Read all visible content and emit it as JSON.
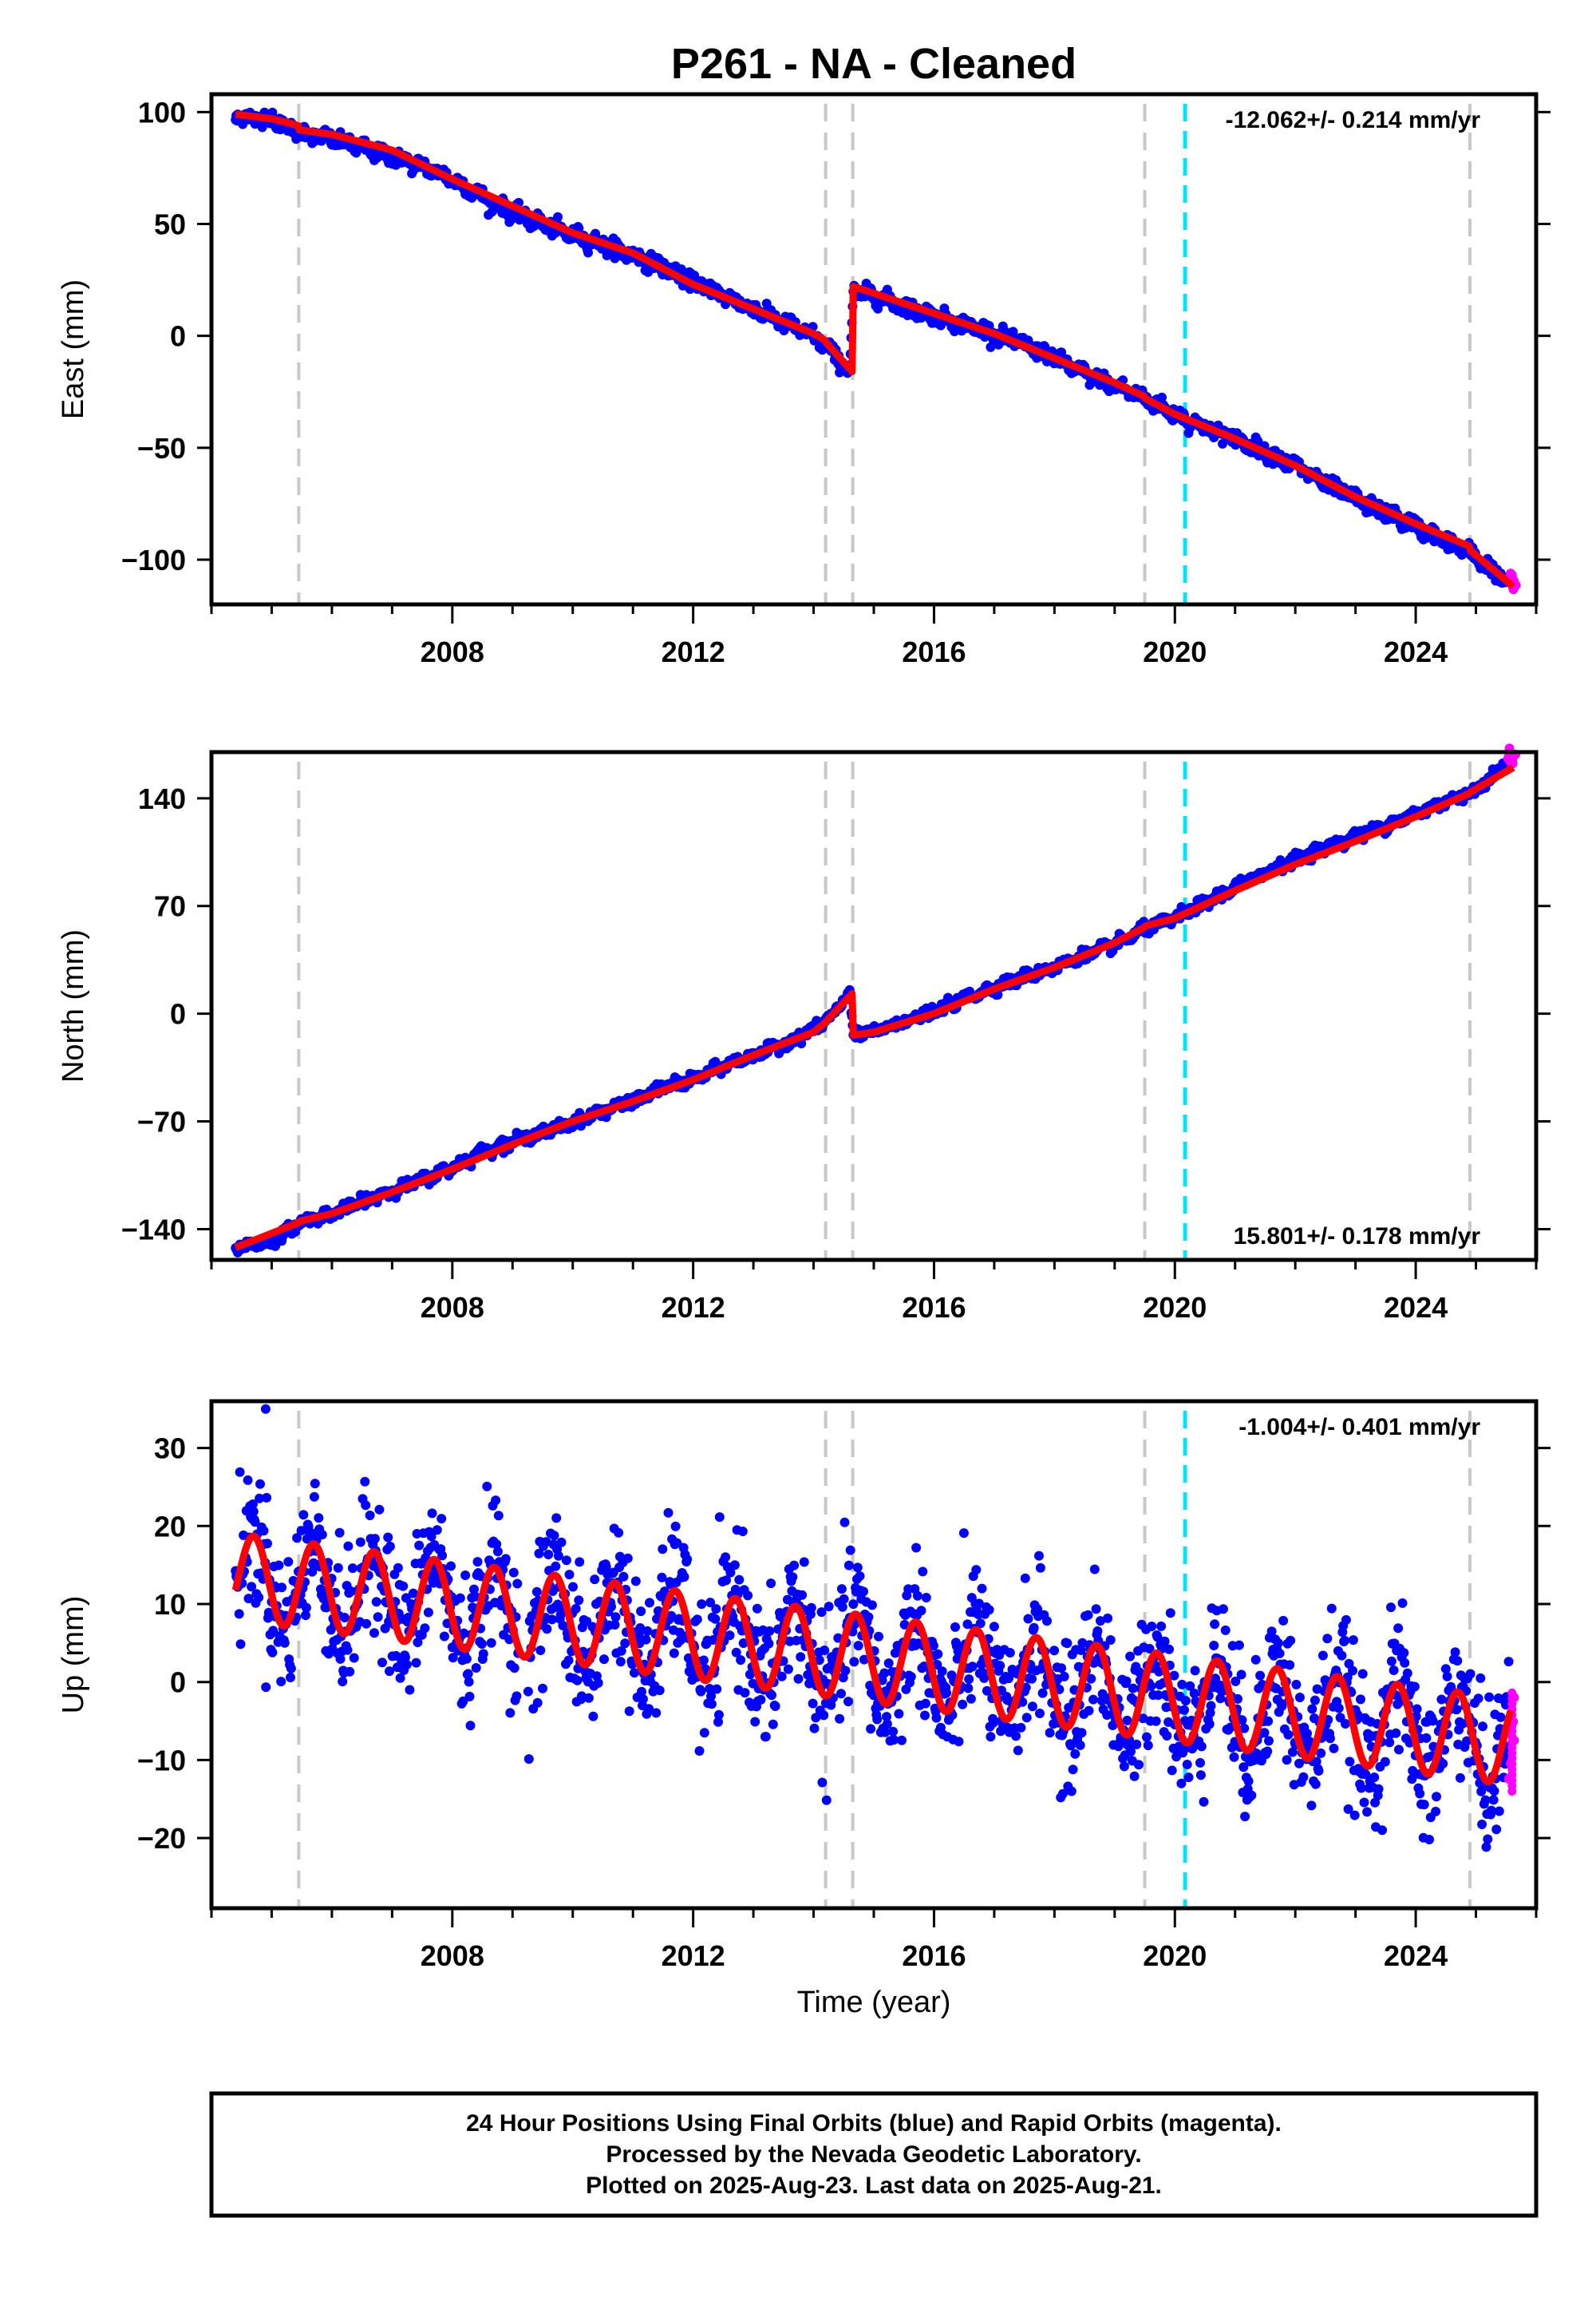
{
  "title": "P261  - NA - Cleaned",
  "colors": {
    "final_points": "#0000ff",
    "rapid_points": "#ff00ff",
    "model_line": "#ff0000",
    "equipment_change": "#c8c8c8",
    "earthquake_marker": "#00e5ff"
  },
  "chart_data": [
    {
      "type": "scatter",
      "ylabel": "East (mm)",
      "ylim": [
        -120,
        108
      ],
      "yticks": [
        100,
        50,
        0,
        -50,
        -100
      ],
      "ytick_labels": [
        "100",
        "50",
        "0",
        "−50",
        "−100"
      ],
      "xlim": [
        2004.0,
        2026.0
      ],
      "xticks": [
        2008,
        2012,
        2016,
        2020,
        2024
      ],
      "xtick_labels": [
        "2008",
        "2012",
        "2016",
        "2020",
        "2024"
      ],
      "rate": "-12.062+/- 0.214 mm/yr",
      "rate_position": "top-right",
      "offset_lines": [
        2005.45,
        2014.2,
        2014.65,
        2019.5,
        2024.9
      ],
      "earthquake_lines": [
        2020.17
      ],
      "final_series": {
        "x": [
          2004.4,
          2005.0,
          2005.4,
          2005.5,
          2006.0,
          2006.5,
          2007.0,
          2007.5,
          2008.0,
          2008.5,
          2009.0,
          2009.5,
          2010.0,
          2010.5,
          2011.0,
          2011.5,
          2012.0,
          2012.5,
          2013.0,
          2013.5,
          2014.0,
          2014.2,
          2014.6,
          2014.66,
          2015.0,
          2015.5,
          2016.0,
          2016.5,
          2017.0,
          2017.5,
          2018.0,
          2018.5,
          2019.0,
          2019.5,
          2020.0,
          2020.5,
          2021.0,
          2021.5,
          2022.0,
          2022.5,
          2023.0,
          2023.5,
          2024.0,
          2024.5,
          2024.9,
          2025.2,
          2025.5
        ],
        "y": [
          98,
          97,
          92,
          91,
          88,
          84,
          80,
          76,
          70,
          62,
          55,
          50,
          45,
          41,
          36,
          31,
          24,
          18,
          12,
          6,
          0,
          -4,
          -16,
          20,
          18,
          13,
          9,
          5,
          1,
          -4,
          -10,
          -17,
          -22,
          -28,
          -35,
          -41,
          -46,
          -52,
          -58,
          -66,
          -73,
          -79,
          -85,
          -92,
          -97,
          -103,
          -110
        ]
      },
      "rapid_series": {
        "x": [
          2025.55,
          2025.6,
          2025.62
        ],
        "y": [
          -108,
          -110,
          -111
        ]
      },
      "model_line": {
        "x": [
          2004.4,
          2005.0,
          2005.44,
          2005.46,
          2006.0,
          2007.0,
          2008.0,
          2009.0,
          2010.0,
          2011.0,
          2012.0,
          2013.0,
          2014.0,
          2014.19,
          2014.21,
          2014.64,
          2014.66,
          2015.0,
          2016.0,
          2017.0,
          2018.0,
          2019.0,
          2019.49,
          2019.51,
          2020.0,
          2021.0,
          2022.0,
          2023.0,
          2024.0,
          2024.89,
          2024.91,
          2025.62
        ],
        "y": [
          99,
          97,
          94,
          92,
          90,
          83,
          70,
          58,
          46,
          37,
          23,
          12,
          1,
          -2,
          -3,
          -16,
          22,
          19,
          10,
          1,
          -10,
          -21,
          -27,
          -28,
          -35,
          -46,
          -58,
          -72,
          -84,
          -94,
          -96,
          -112
        ]
      }
    },
    {
      "type": "scatter",
      "ylabel": "North (mm)",
      "ylim": [
        -160,
        170
      ],
      "yticks": [
        140,
        70,
        0,
        -70,
        -140
      ],
      "ytick_labels": [
        "140",
        "70",
        "0",
        "−70",
        "−140"
      ],
      "xlim": [
        2004.0,
        2026.0
      ],
      "xticks": [
        2008,
        2012,
        2016,
        2020,
        2024
      ],
      "xtick_labels": [
        "2008",
        "2012",
        "2016",
        "2020",
        "2024"
      ],
      "rate": "15.801+/- 0.178 mm/yr",
      "rate_position": "bottom-right",
      "offset_lines": [
        2005.45,
        2014.2,
        2014.65,
        2019.5,
        2024.9
      ],
      "earthquake_lines": [
        2020.17
      ],
      "final_series": {
        "x": [
          2004.4,
          2005.0,
          2005.5,
          2006.0,
          2006.5,
          2007.0,
          2007.5,
          2008.0,
          2008.5,
          2009.0,
          2009.5,
          2010.0,
          2010.5,
          2011.0,
          2011.5,
          2012.0,
          2012.5,
          2013.0,
          2013.5,
          2014.0,
          2014.3,
          2014.6,
          2014.66,
          2015.0,
          2015.5,
          2016.0,
          2016.5,
          2017.0,
          2017.5,
          2018.0,
          2018.5,
          2019.0,
          2019.5,
          2020.0,
          2020.5,
          2021.0,
          2021.5,
          2022.0,
          2022.5,
          2023.0,
          2023.5,
          2024.0,
          2024.5,
          2024.9,
          2025.2,
          2025.5
        ],
        "y": [
          -152,
          -148,
          -135,
          -130,
          -122,
          -115,
          -108,
          -100,
          -90,
          -83,
          -77,
          -71,
          -63,
          -57,
          -48,
          -43,
          -34,
          -27,
          -20,
          -10,
          -2,
          14,
          -14,
          -12,
          -5,
          1,
          10,
          17,
          24,
          30,
          38,
          45,
          55,
          62,
          72,
          82,
          92,
          100,
          108,
          115,
          122,
          130,
          138,
          143,
          152,
          163
        ]
      },
      "rapid_series": {
        "x": [
          2025.55,
          2025.6,
          2025.62
        ],
        "y": [
          166,
          168,
          165
        ]
      },
      "model_line": {
        "x": [
          2004.4,
          2005.44,
          2005.46,
          2006.0,
          2007.0,
          2008.0,
          2009.0,
          2010.0,
          2011.0,
          2012.0,
          2013.0,
          2014.0,
          2014.19,
          2014.21,
          2014.64,
          2014.66,
          2015.0,
          2016.0,
          2017.0,
          2018.0,
          2019.0,
          2019.49,
          2019.51,
          2020.0,
          2021.0,
          2022.0,
          2023.0,
          2024.0,
          2024.89,
          2024.91,
          2025.62
        ],
        "y": [
          -152,
          -136,
          -135,
          -130,
          -116,
          -101,
          -85,
          -70,
          -57,
          -43,
          -27,
          -12,
          -6,
          -5,
          13,
          -14,
          -12,
          0,
          16,
          30,
          46,
          56,
          57,
          62,
          80,
          97,
          112,
          128,
          143,
          144,
          160
        ]
      }
    },
    {
      "type": "scatter",
      "ylabel": "Up (mm)",
      "xlabel": "Time (year)",
      "ylim": [
        -29,
        36
      ],
      "yticks": [
        30,
        20,
        10,
        0,
        -10,
        -20
      ],
      "ytick_labels": [
        "30",
        "20",
        "10",
        "0",
        "−10",
        "−20"
      ],
      "xlim": [
        2004.0,
        2026.0
      ],
      "xticks": [
        2008,
        2012,
        2016,
        2020,
        2024
      ],
      "xtick_labels": [
        "2008",
        "2012",
        "2016",
        "2020",
        "2024"
      ],
      "rate": "-1.004+/- 0.401 mm/yr",
      "rate_position": "top-right",
      "offset_lines": [
        2005.45,
        2014.2,
        2014.65,
        2019.5,
        2024.9
      ],
      "earthquake_lines": [
        2020.17
      ],
      "seasonal_model": {
        "mean_at_2004_4": 13.5,
        "trend_mm_per_yr": -1.0,
        "amplitude": 5.5,
        "peak_fraction_of_year": 0.7
      },
      "scatter_noise_mm": 4.5,
      "outliers": {
        "x": [
          2004.9
        ],
        "y": [
          35
        ]
      },
      "rapid_series": {
        "x": [
          2025.58,
          2025.6,
          2025.62,
          2025.6,
          2025.58
        ],
        "y": [
          -2,
          -5,
          -8,
          -11,
          -13
        ]
      },
      "final_x_range": [
        2004.4,
        2025.56
      ]
    }
  ],
  "footer": {
    "line1": "24 Hour Positions Using Final Orbits (blue) and Rapid Orbits (magenta).",
    "line2": "Processed by the Nevada Geodetic Laboratory.",
    "line3": "Plotted on 2025-Aug-23. Last data on 2025-Aug-21."
  }
}
